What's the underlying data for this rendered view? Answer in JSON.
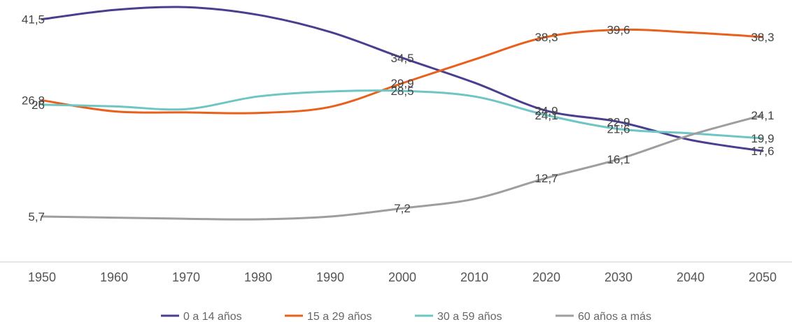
{
  "chart_data": {
    "type": "line",
    "title": "",
    "xlabel": "",
    "ylabel": "",
    "ylim": [
      0,
      45
    ],
    "grid": false,
    "legend_position": "bottom",
    "x": [
      "1950",
      "1960",
      "1970",
      "1980",
      "1990",
      "2000",
      "2010",
      "2020",
      "2030",
      "2040",
      "2050"
    ],
    "series": [
      {
        "name": "0 a 14 años",
        "color": "#4a3f8f",
        "values": [
          41.5,
          43.2,
          43.7,
          42.3,
          39.2,
          34.5,
          30.0,
          24.9,
          22.9,
          19.6,
          17.6
        ],
        "labels": [
          "41,5",
          null,
          null,
          null,
          null,
          "34,5",
          null,
          "24,9",
          "22,9",
          null,
          "17,6"
        ]
      },
      {
        "name": "15 a 29 años",
        "color": "#e8601c",
        "values": [
          26.8,
          24.8,
          24.6,
          24.5,
          25.6,
          29.9,
          34.2,
          38.3,
          39.6,
          39.1,
          38.3
        ],
        "labels": [
          "26,8",
          null,
          null,
          null,
          null,
          "29,9",
          null,
          "38,3",
          "39,6",
          null,
          "38,3"
        ]
      },
      {
        "name": "30 a 59 años",
        "color": "#6ec6c4",
        "values": [
          26.0,
          25.7,
          25.2,
          27.5,
          28.4,
          28.5,
          27.5,
          24.1,
          21.6,
          20.8,
          19.9
        ],
        "labels": [
          "26",
          null,
          null,
          null,
          null,
          "28,5",
          null,
          "24,1",
          "21,6",
          null,
          "19,9"
        ]
      },
      {
        "name": "60 años a más",
        "color": "#9e9e9e",
        "values": [
          5.7,
          5.5,
          5.3,
          5.2,
          5.7,
          7.2,
          8.9,
          12.7,
          16.1,
          20.5,
          24.1
        ],
        "labels": [
          "5,7",
          null,
          null,
          null,
          null,
          "7,2",
          null,
          "12,7",
          "16,1",
          null,
          "24,1"
        ]
      }
    ]
  }
}
